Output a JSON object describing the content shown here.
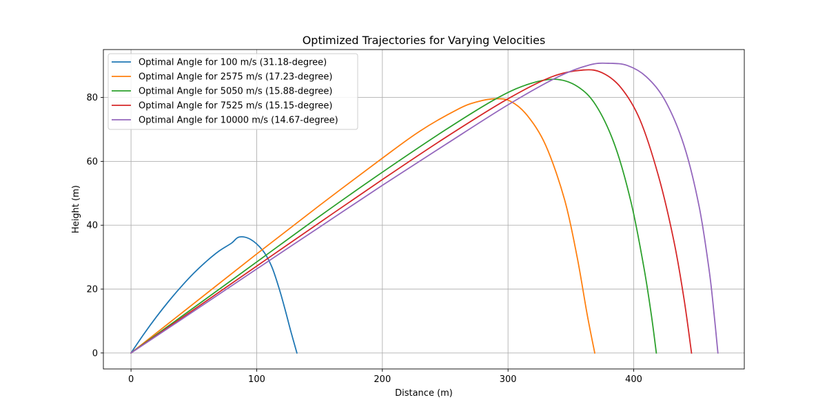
{
  "chart_data": {
    "type": "line",
    "title": "Optimized Trajectories for Varying Velocities",
    "xlabel": "Distance (m)",
    "ylabel": "Height (m)",
    "xlim": [
      -22,
      488
    ],
    "ylim": [
      -5,
      95
    ],
    "xticks": [
      0,
      100,
      200,
      300,
      400
    ],
    "yticks": [
      0,
      20,
      40,
      60,
      80
    ],
    "grid": true,
    "legend_position": "top-left",
    "series": [
      {
        "name": "Optimal Angle for 100 m/s (31.18-degree)",
        "color": "#1f77b4",
        "points": [
          [
            0,
            0
          ],
          [
            10,
            5.8
          ],
          [
            20,
            11.2
          ],
          [
            30,
            16.2
          ],
          [
            40,
            20.8
          ],
          [
            50,
            25.0
          ],
          [
            60,
            28.7
          ],
          [
            70,
            31.9
          ],
          [
            80,
            34.4
          ],
          [
            86,
            36.3
          ],
          [
            95,
            35.6
          ],
          [
            105,
            32.0
          ],
          [
            112,
            27.0
          ],
          [
            118,
            20.0
          ],
          [
            123,
            13.0
          ],
          [
            127,
            7.0
          ],
          [
            132,
            0
          ]
        ]
      },
      {
        "name": "Optimal Angle for 2575 m/s (17.23-degree)",
        "color": "#ff7f0e",
        "points": [
          [
            0,
            0
          ],
          [
            50,
            15.5
          ],
          [
            100,
            31.0
          ],
          [
            150,
            46.2
          ],
          [
            200,
            61.0
          ],
          [
            230,
            69.5
          ],
          [
            260,
            76.3
          ],
          [
            275,
            78.6
          ],
          [
            290,
            79.6
          ],
          [
            302,
            78.8
          ],
          [
            315,
            74.5
          ],
          [
            330,
            65.0
          ],
          [
            345,
            48.0
          ],
          [
            355,
            30.0
          ],
          [
            363,
            12.0
          ],
          [
            369,
            0
          ]
        ]
      },
      {
        "name": "Optimal Angle for 5050 m/s (15.88-degree)",
        "color": "#2ca02c",
        "points": [
          [
            0,
            0
          ],
          [
            50,
            14.2
          ],
          [
            100,
            28.5
          ],
          [
            150,
            42.8
          ],
          [
            200,
            56.6
          ],
          [
            250,
            69.8
          ],
          [
            290,
            79.5
          ],
          [
            315,
            84.0
          ],
          [
            337,
            85.7
          ],
          [
            355,
            83.5
          ],
          [
            370,
            77.5
          ],
          [
            385,
            65.0
          ],
          [
            398,
            47.0
          ],
          [
            408,
            27.0
          ],
          [
            414,
            12.0
          ],
          [
            418,
            0
          ]
        ]
      },
      {
        "name": "Optimal Angle for 7525 m/s (15.15-degree)",
        "color": "#d62728",
        "points": [
          [
            0,
            0
          ],
          [
            50,
            13.6
          ],
          [
            100,
            27.2
          ],
          [
            150,
            40.8
          ],
          [
            200,
            54.3
          ],
          [
            250,
            67.4
          ],
          [
            300,
            79.6
          ],
          [
            335,
            86.5
          ],
          [
            360,
            88.6
          ],
          [
            375,
            87.7
          ],
          [
            390,
            83.0
          ],
          [
            405,
            73.0
          ],
          [
            420,
            55.0
          ],
          [
            432,
            35.0
          ],
          [
            440,
            17.0
          ],
          [
            446,
            0
          ]
        ]
      },
      {
        "name": "Optimal Angle for 10000 m/s (14.67-degree)",
        "color": "#9467bd",
        "points": [
          [
            0,
            0
          ],
          [
            50,
            13.1
          ],
          [
            100,
            26.3
          ],
          [
            150,
            39.4
          ],
          [
            200,
            52.5
          ],
          [
            250,
            65.2
          ],
          [
            300,
            77.7
          ],
          [
            340,
            86.5
          ],
          [
            365,
            90.2
          ],
          [
            380,
            90.7
          ],
          [
            395,
            90.0
          ],
          [
            410,
            86.5
          ],
          [
            425,
            79.0
          ],
          [
            440,
            65.0
          ],
          [
            452,
            46.0
          ],
          [
            460,
            26.0
          ],
          [
            464,
            12.0
          ],
          [
            467,
            0
          ]
        ]
      }
    ]
  }
}
